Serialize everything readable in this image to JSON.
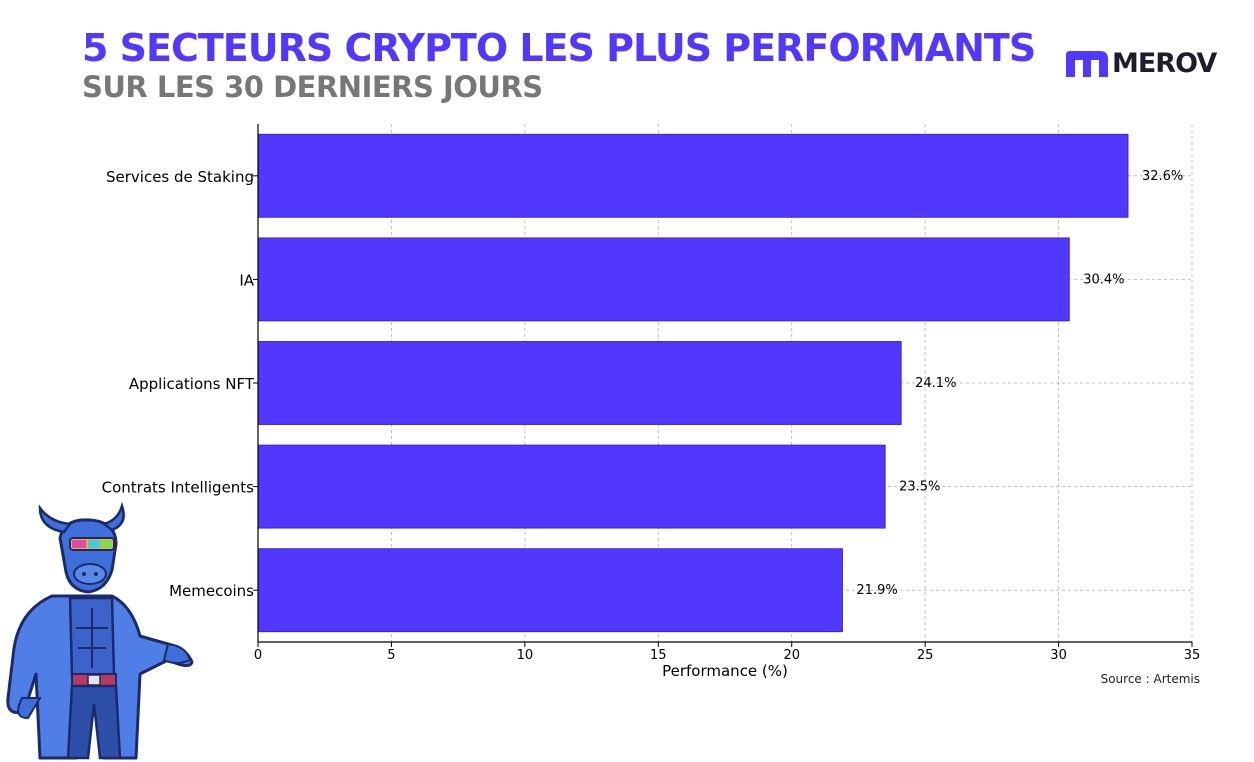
{
  "header": {
    "title": "5 SECTEURS CRYPTO LES PLUS PERFORMANTS",
    "subtitle": "SUR LES 30 DERNIERS JOURS"
  },
  "brand": {
    "logo_text": "MEROV",
    "icon": "merov-m-icon",
    "accent_color": "#5238ff"
  },
  "source": "Source : Artemis",
  "chart_data": {
    "type": "bar",
    "orientation": "horizontal",
    "categories": [
      "Services de Staking",
      "IA",
      "Applications NFT",
      "Contrats Intelligents",
      "Memecoins"
    ],
    "values": [
      32.6,
      30.4,
      24.1,
      23.5,
      21.9
    ],
    "data_labels": [
      "32.6%",
      "30.4%",
      "24.1%",
      "23.5%",
      "21.9%"
    ],
    "xlabel": "Performance (%)",
    "ylabel": "",
    "xlim": [
      0,
      35
    ],
    "xticks": [
      0,
      5,
      10,
      15,
      20,
      25,
      30,
      35
    ],
    "grid": true,
    "bar_color": "#5238ff"
  },
  "mascot": {
    "icon": "bull-scientist-mascot-icon"
  }
}
